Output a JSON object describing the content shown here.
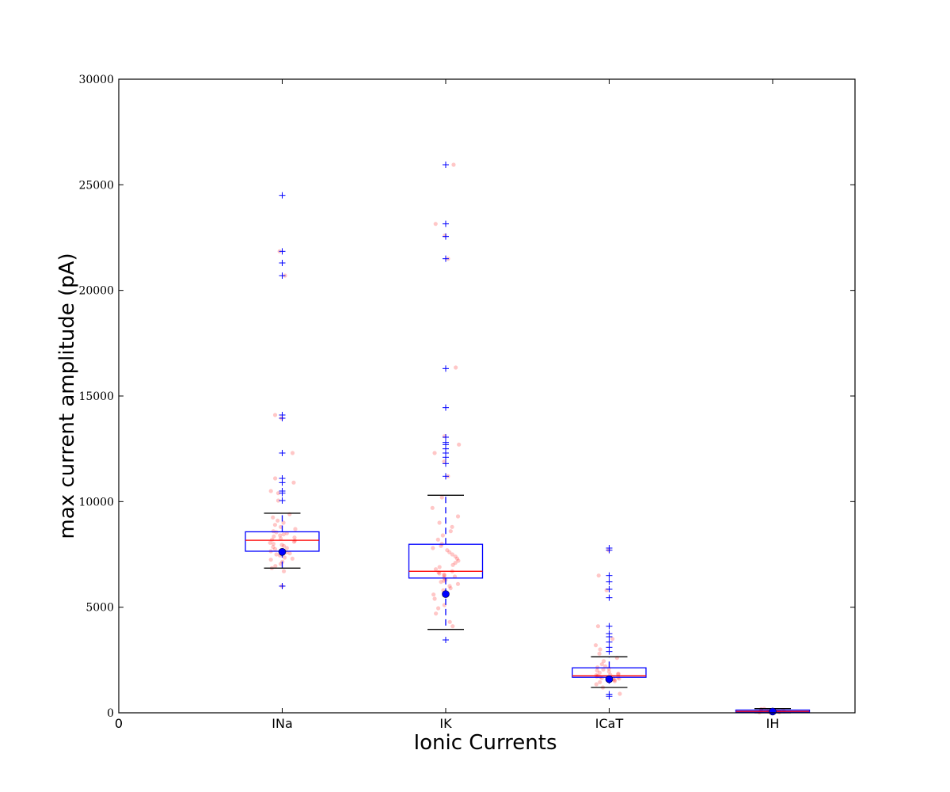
{
  "chart_data": {
    "type": "box",
    "xlabel": "Ionic Currents",
    "ylabel": "max current amplitude (pA)",
    "ylim": [
      0,
      30000
    ],
    "y_ticks": [
      "0",
      "5000",
      "10000",
      "15000",
      "20000",
      "25000",
      "30000"
    ],
    "x_tick_zero": "0",
    "grid": false,
    "legend": "none",
    "colors": {
      "box": "#0000ff",
      "median": "#ff0000",
      "whisker_cap": "#000000",
      "outlier": "#0000ff",
      "points": "#ff0000",
      "mean_marker": "#0000ff"
    },
    "categories": [
      "INa",
      "IK",
      "ICaT",
      "IH"
    ],
    "series": [
      {
        "category": "INa",
        "q1": 7650,
        "median": 8170,
        "q3": 8570,
        "whisker_low": 6850,
        "whisker_high": 9450,
        "mean": 7620,
        "outliers": [
          6000,
          10050,
          10400,
          10500,
          10900,
          11100,
          12300,
          13950,
          14100,
          20700,
          21300,
          21850,
          24500
        ],
        "points": [
          6000,
          6700,
          6850,
          6950,
          7050,
          7150,
          7250,
          7300,
          7350,
          7450,
          7500,
          7550,
          7600,
          7650,
          7700,
          7750,
          7800,
          7850,
          7900,
          7950,
          8000,
          8050,
          8100,
          8150,
          8200,
          8250,
          8300,
          8350,
          8400,
          8450,
          8500,
          8550,
          8600,
          8700,
          8800,
          8900,
          9000,
          9100,
          9250,
          9400,
          10050,
          10400,
          10500,
          10900,
          11100,
          12300,
          13950,
          14100,
          20700,
          21850
        ]
      },
      {
        "category": "IK",
        "q1": 6380,
        "median": 6700,
        "q3": 7980,
        "whisker_low": 3950,
        "whisker_high": 10300,
        "mean": 5620,
        "outliers": [
          3450,
          11200,
          11800,
          12100,
          12300,
          12500,
          12700,
          12800,
          13050,
          14450,
          16300,
          21500,
          22550,
          23150,
          25950
        ],
        "points": [
          4100,
          4300,
          4700,
          4950,
          5100,
          5400,
          5600,
          5800,
          5900,
          6000,
          6100,
          6200,
          6250,
          6300,
          6400,
          6450,
          6500,
          6550,
          6600,
          6650,
          6700,
          6800,
          6900,
          7000,
          7100,
          7200,
          7300,
          7400,
          7500,
          7600,
          7700,
          7800,
          7900,
          8000,
          8200,
          8400,
          8600,
          8800,
          9000,
          9300,
          9700,
          10200,
          11200,
          11900,
          12300,
          12700,
          13100,
          16350,
          21500,
          22600,
          23150,
          25950
        ]
      },
      {
        "category": "ICaT",
        "q1": 1680,
        "median": 1750,
        "q3": 2130,
        "whisker_low": 1200,
        "whisker_high": 2650,
        "mean": 1590,
        "outliers": [
          780,
          880,
          2900,
          3100,
          3350,
          3600,
          3750,
          4100,
          5450,
          5850,
          6200,
          6500,
          7700,
          7800
        ],
        "points": [
          900,
          1200,
          1350,
          1450,
          1500,
          1550,
          1600,
          1620,
          1650,
          1680,
          1700,
          1720,
          1750,
          1780,
          1800,
          1830,
          1850,
          1900,
          1950,
          2000,
          2050,
          2100,
          2150,
          2200,
          2300,
          2450,
          2600,
          2800,
          3000,
          3200,
          3500,
          4100,
          5800,
          6500,
          7700
        ]
      },
      {
        "category": "IH",
        "q1": 30,
        "median": 70,
        "q3": 130,
        "whisker_low": 0,
        "whisker_high": 200,
        "mean": 60,
        "outliers": [],
        "points": [
          10,
          20,
          30,
          40,
          50,
          60,
          70,
          80,
          90,
          100,
          110,
          120,
          130,
          150,
          170,
          190
        ]
      }
    ]
  }
}
